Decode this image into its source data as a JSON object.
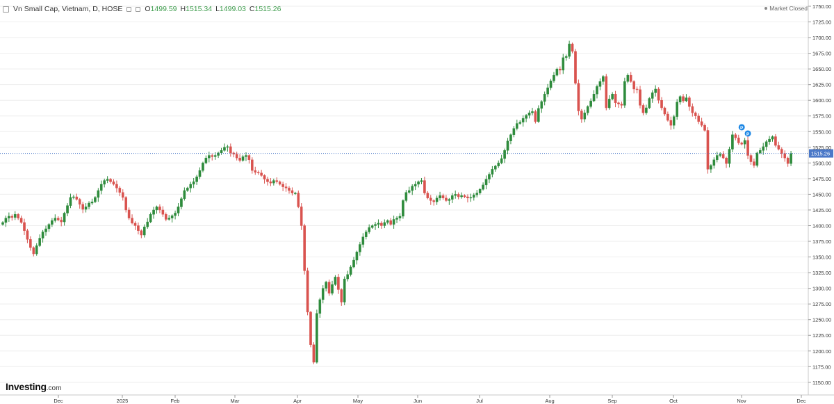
{
  "header": {
    "symbol": "Vn Small Cap, Vietnam, D, HOSE",
    "open_label": "O",
    "open": "1499.59",
    "high_label": "H",
    "high": "1515.34",
    "low_label": "L",
    "low": "1499.03",
    "close_label": "C",
    "close": "1515.26"
  },
  "status": "Market Closed",
  "brand": {
    "name": "Investing",
    "suffix": ".com"
  },
  "colors": {
    "up": "#2e8b3c",
    "down": "#d9534f",
    "grid": "#eeeeee",
    "current_line": "#4a78c8",
    "label_bg": "#4a78c8",
    "marker": "#1e88e5"
  },
  "chart_data": {
    "type": "candlestick",
    "current_price": 1515.26,
    "current_price_label": "1515.26",
    "ylim": [
      1135,
      1765
    ],
    "y_ticks": [
      1150,
      1175,
      1200,
      1225,
      1250,
      1275,
      1300,
      1325,
      1350,
      1375,
      1400,
      1425,
      1450,
      1475,
      1500,
      1525,
      1550,
      1575,
      1600,
      1625,
      1650,
      1675,
      1700,
      1725,
      1750
    ],
    "x_ticks": [
      "Dec",
      "2025",
      "Feb",
      "Mar",
      "Apr",
      "May",
      "Jun",
      "Jul",
      "Aug",
      "Sep",
      "Oct",
      "Nov",
      "Dec"
    ],
    "markers": [
      {
        "anchor_index": 240,
        "value": 1557,
        "symbol": "P"
      },
      {
        "anchor_index": 242,
        "value": 1547,
        "symbol": "P"
      }
    ],
    "closes": [
      1405,
      1412,
      1415,
      1413,
      1418,
      1412,
      1405,
      1392,
      1378,
      1365,
      1355,
      1368,
      1380,
      1390,
      1395,
      1402,
      1408,
      1412,
      1409,
      1406,
      1420,
      1432,
      1445,
      1446,
      1442,
      1434,
      1426,
      1430,
      1436,
      1438,
      1445,
      1456,
      1466,
      1472,
      1474,
      1470,
      1466,
      1460,
      1453,
      1445,
      1425,
      1412,
      1404,
      1400,
      1392,
      1385,
      1398,
      1406,
      1418,
      1425,
      1430,
      1425,
      1418,
      1410,
      1412,
      1416,
      1420,
      1430,
      1443,
      1456,
      1460,
      1466,
      1470,
      1478,
      1488,
      1500,
      1508,
      1512,
      1510,
      1512,
      1516,
      1520,
      1525,
      1526,
      1516,
      1514,
      1508,
      1504,
      1510,
      1512,
      1505,
      1488,
      1485,
      1484,
      1480,
      1474,
      1470,
      1468,
      1472,
      1470,
      1466,
      1462,
      1460,
      1456,
      1452,
      1452,
      1430,
      1400,
      1328,
      1262,
      1210,
      1182,
      1260,
      1282,
      1300,
      1310,
      1292,
      1306,
      1318,
      1298,
      1278,
      1315,
      1322,
      1334,
      1345,
      1358,
      1370,
      1382,
      1390,
      1397,
      1400,
      1402,
      1404,
      1400,
      1405,
      1408,
      1402,
      1410,
      1412,
      1415,
      1440,
      1453,
      1456,
      1463,
      1466,
      1470,
      1472,
      1452,
      1444,
      1440,
      1438,
      1444,
      1448,
      1444,
      1440,
      1442,
      1448,
      1450,
      1446,
      1448,
      1446,
      1444,
      1445,
      1449,
      1452,
      1458,
      1465,
      1474,
      1482,
      1490,
      1495,
      1500,
      1507,
      1520,
      1535,
      1545,
      1555,
      1563,
      1565,
      1571,
      1576,
      1580,
      1582,
      1566,
      1587,
      1598,
      1610,
      1620,
      1631,
      1640,
      1650,
      1648,
      1668,
      1670,
      1690,
      1678,
      1627,
      1583,
      1570,
      1580,
      1590,
      1599,
      1610,
      1622,
      1630,
      1638,
      1588,
      1602,
      1610,
      1596,
      1594,
      1592,
      1630,
      1640,
      1630,
      1618,
      1617,
      1592,
      1580,
      1588,
      1603,
      1612,
      1618,
      1600,
      1588,
      1578,
      1568,
      1560,
      1574,
      1597,
      1606,
      1599,
      1604,
      1590,
      1580,
      1575,
      1566,
      1560,
      1552,
      1490,
      1496,
      1505,
      1512,
      1514,
      1508,
      1499,
      1522,
      1545,
      1540,
      1532,
      1530,
      1536,
      1512,
      1502,
      1496,
      1516,
      1520,
      1526,
      1534,
      1538,
      1542,
      1528,
      1522,
      1515,
      1508,
      1499,
      1515.26
    ]
  }
}
